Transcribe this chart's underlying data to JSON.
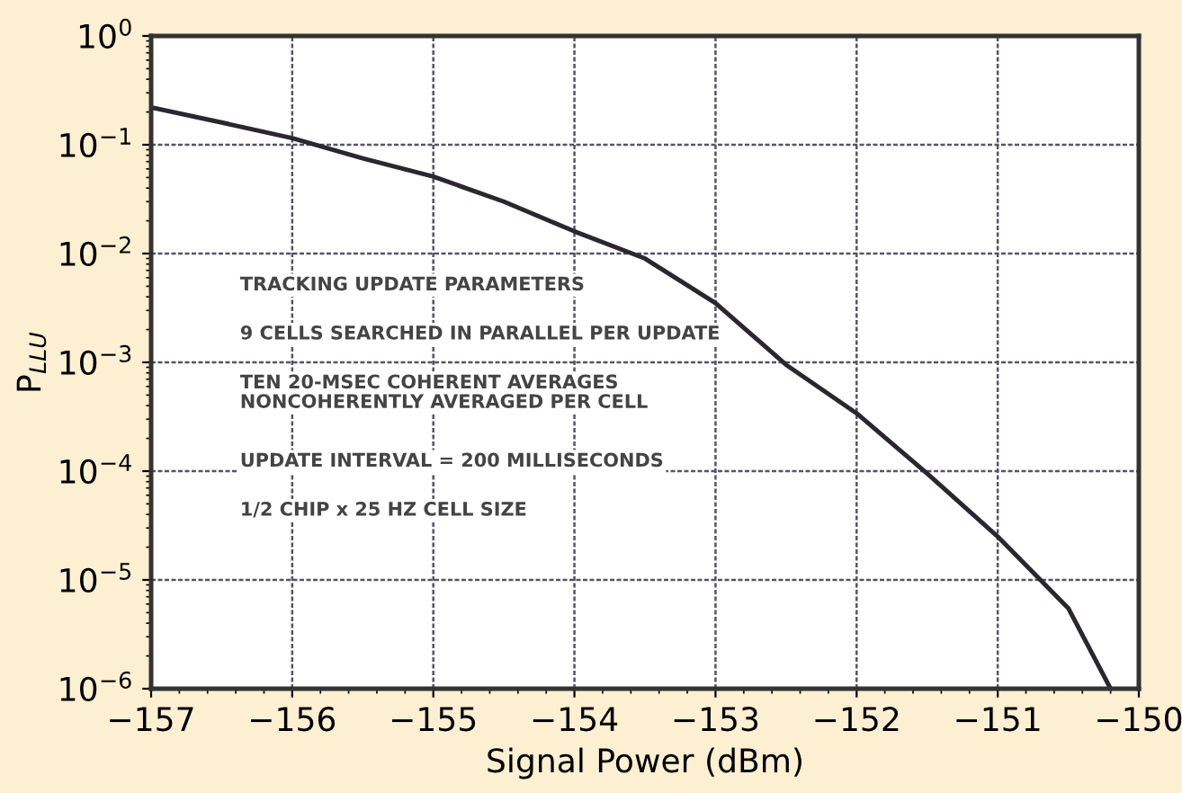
{
  "chart_data": {
    "type": "line",
    "xlabel": "Signal Power (dBm)",
    "ylabel": "P$_{LLU}$",
    "x": [
      -157,
      -156.5,
      -156,
      -155.5,
      -155,
      -154.5,
      -154,
      -153.5,
      -153,
      -152.5,
      -152,
      -151.5,
      -151,
      -150.5,
      -150.2
    ],
    "series": [
      {
        "color": "#2b2630",
        "values": [
          0.22,
          0.16,
          0.115,
          0.075,
          0.051,
          0.03,
          0.016,
          0.009,
          0.0035,
          0.00095,
          0.00034,
          9.5e-05,
          2.5e-05,
          5.5e-06,
          1e-06
        ]
      }
    ],
    "log": "y",
    "xlim": [
      -157,
      -150
    ],
    "ylim": [
      1e-06,
      1
    ],
    "xticks": [
      {
        "value": -157,
        "label": "−157"
      },
      {
        "value": -156,
        "label": "−156"
      },
      {
        "value": -155,
        "label": "−155"
      },
      {
        "value": -154,
        "label": "−154"
      },
      {
        "value": -153,
        "label": "−153"
      },
      {
        "value": -152,
        "label": "−152"
      },
      {
        "value": -151,
        "label": "−151"
      },
      {
        "value": -150,
        "label": "−150"
      }
    ],
    "yticks": [
      {
        "value": 1e-06,
        "label": "10$^{−6}$"
      },
      {
        "value": 1e-05,
        "label": "10$^{−5}$"
      },
      {
        "value": 0.0001,
        "label": "10$^{−4}$"
      },
      {
        "value": 0.001,
        "label": "10$^{−3}$"
      },
      {
        "value": 0.01,
        "label": "10$^{−2}$"
      },
      {
        "value": 0.1,
        "label": "10$^{−1}$"
      },
      {
        "value": 1,
        "label": "10$^{0}$"
      }
    ],
    "grid": true,
    "line_style": "solid",
    "marker": "none",
    "annotations": [
      "TRACKING UPDATE PARAMETERS",
      "9 CELLS SEARCHED IN PARALLEL PER UPDATE",
      "TEN 20-MSEC COHERENT AVERAGES\nNONCOHERENTLY AVERAGED PER CELL",
      "UPDATE INTERVAL = 200 MILLISECONDS",
      "1/2 CHIP x 25 HZ CELL SIZE"
    ]
  }
}
